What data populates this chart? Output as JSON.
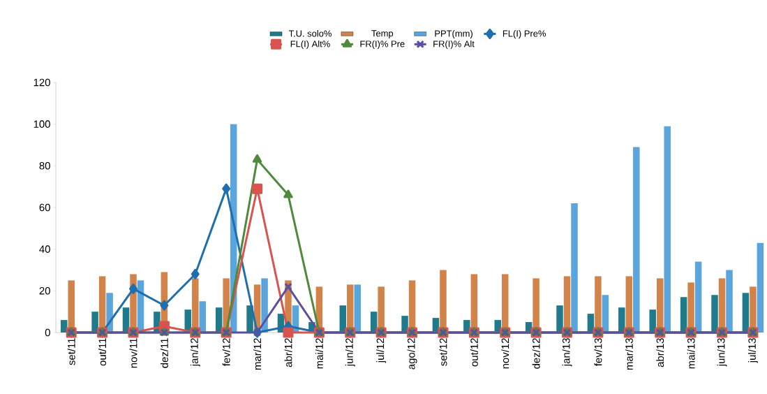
{
  "chart_data": {
    "type": "bar",
    "categories": [
      "set/11",
      "out/11",
      "nov/11",
      "dez/11",
      "jan/12",
      "fev/12",
      "mar/12",
      "abr/12",
      "mai/12",
      "jun/12",
      "jul/12",
      "ago/12",
      "set/12",
      "out/12",
      "nov/12",
      "dez/12",
      "jan/13",
      "fev/13",
      "mar/13",
      "abr/13",
      "mai/13",
      "jun/13",
      "jul/13"
    ],
    "series": [
      {
        "name": "T.U. solo%",
        "color": "#1f7a8c",
        "values": [
          6,
          10,
          12,
          10,
          11,
          12,
          13,
          9,
          5,
          13,
          10,
          8,
          7,
          6,
          6,
          5,
          13,
          9,
          12,
          11,
          17,
          18,
          19
        ]
      },
      {
        "name": "Temp",
        "color": "#d2834a",
        "values": [
          25,
          27,
          28,
          29,
          26,
          26,
          23,
          25,
          22,
          23,
          22,
          25,
          30,
          28,
          28,
          26,
          27,
          27,
          27,
          26,
          24,
          26,
          22
        ]
      },
      {
        "name": "PPT(mm)",
        "color": "#5aa5dc",
        "values": [
          0,
          19,
          25,
          0,
          15,
          100,
          26,
          13,
          0,
          23,
          0,
          0,
          0,
          0,
          0,
          0,
          62,
          18,
          89,
          99,
          34,
          30,
          43
        ]
      },
      {
        "name": "FL(I) Pre%",
        "type": "line",
        "marker": "diamond",
        "color": "#1f6fae",
        "values": [
          0,
          0,
          21,
          13,
          28,
          69,
          0,
          3,
          0,
          0,
          0,
          0,
          0,
          0,
          0,
          0,
          0,
          0,
          0,
          0,
          0,
          0,
          0
        ]
      },
      {
        "name": "FL(I) Alt%",
        "type": "line",
        "marker": "square",
        "color": "#d9534f",
        "values": [
          0,
          0,
          0,
          3,
          0,
          0,
          69,
          0,
          0,
          0,
          0,
          0,
          0,
          0,
          0,
          0,
          0,
          0,
          0,
          0,
          0,
          0,
          0
        ]
      },
      {
        "name": "FR(I)% Pre",
        "type": "line",
        "marker": "triangle",
        "color": "#4e8a3a",
        "values": [
          0,
          0,
          0,
          0,
          0,
          0,
          83,
          66,
          0,
          0,
          0,
          0,
          0,
          0,
          0,
          0,
          0,
          0,
          0,
          0,
          0,
          0,
          0
        ]
      },
      {
        "name": "FR(I)% Alt",
        "type": "line",
        "marker": "cross",
        "color": "#5a4fa0",
        "values": [
          0,
          0,
          0,
          0,
          0,
          0,
          0,
          22,
          0,
          0,
          0,
          0,
          0,
          0,
          0,
          0,
          0,
          0,
          0,
          0,
          0,
          0,
          0
        ]
      }
    ],
    "ylim": [
      0,
      120
    ],
    "yticks": [
      0,
      20,
      40,
      60,
      80,
      100,
      120
    ],
    "grid": false,
    "legend": "top"
  }
}
